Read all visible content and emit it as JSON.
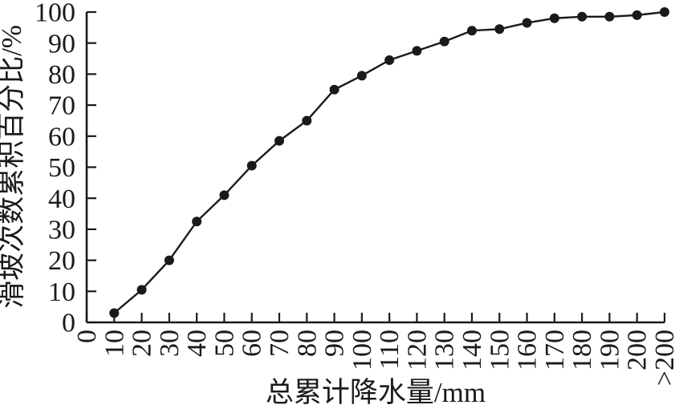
{
  "chart_data": {
    "type": "line",
    "title": "",
    "xlabel": "总累计降水量/mm",
    "ylabel": "滑坡次数累积百分比/%",
    "x_axis_ticks": [
      "0",
      "10",
      "20",
      "30",
      "40",
      "50",
      "60",
      "70",
      "80",
      "90",
      "100",
      "110",
      "120",
      "130",
      "140",
      "150",
      "160",
      "170",
      "180",
      "190",
      "200",
      ">200"
    ],
    "categories": [
      "10",
      "20",
      "30",
      "40",
      "50",
      "60",
      "70",
      "80",
      "90",
      "100",
      "110",
      "120",
      "130",
      "140",
      "150",
      "160",
      "170",
      "180",
      "190",
      "200",
      ">200"
    ],
    "values": [
      3,
      10.5,
      20,
      32.5,
      41,
      50.5,
      58.5,
      65,
      75,
      79.5,
      84.5,
      87.5,
      90.5,
      94,
      94.5,
      96.5,
      98,
      98.5,
      98.5,
      99,
      100
    ],
    "y_ticks": [
      0,
      10,
      20,
      30,
      40,
      50,
      60,
      70,
      80,
      90,
      100
    ],
    "ylim": [
      0,
      100
    ],
    "grid": false,
    "legend": "none",
    "line_color": "#1a1a1a",
    "marker": "filled-circle",
    "background": "#ffffff",
    "x_tick_label_rotation_deg": -90
  }
}
